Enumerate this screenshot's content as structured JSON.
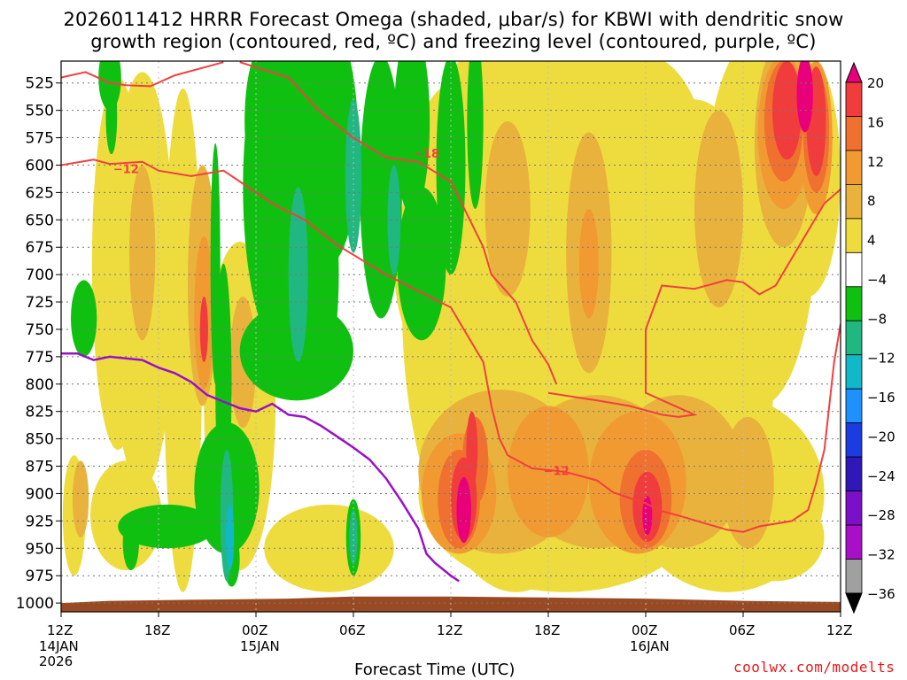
{
  "title": {
    "line1": "2026011412 HRRR Forecast Omega (shaded, μbar/s) for KBWI with dendritic snow",
    "line2": "growth region (contoured, red, ºC) and freezing level (contoured, purple, ºC)"
  },
  "credit": "coolwx.com/modelts",
  "chart_data": {
    "type": "heatmap",
    "xlabel": "Forecast Time (UTC)",
    "ylabel": "",
    "x_ticks": [
      "12Z",
      "18Z",
      "00Z",
      "06Z",
      "12Z",
      "18Z",
      "00Z",
      "06Z",
      "12Z"
    ],
    "x_date_labels": [
      {
        "index": 0,
        "lines": [
          "14JAN",
          "2026"
        ]
      },
      {
        "index": 2,
        "lines": [
          "15JAN"
        ]
      },
      {
        "index": 6,
        "lines": [
          "16JAN"
        ]
      }
    ],
    "x_range_hours": [
      0,
      48
    ],
    "y_ticks": [
      525,
      550,
      575,
      600,
      625,
      650,
      675,
      700,
      725,
      750,
      775,
      800,
      825,
      850,
      875,
      900,
      925,
      950,
      975,
      1000
    ],
    "y_range_mb": [
      505,
      1008
    ],
    "grid": true,
    "colorbar": {
      "labels": [
        "20",
        "16",
        "12",
        "8",
        "4",
        "−4",
        "−8",
        "−12",
        "−16",
        "−20",
        "−24",
        "−28",
        "−32",
        "−36"
      ],
      "colors": [
        "#e8007a",
        "#f03c3c",
        "#f07030",
        "#f29a32",
        "#e9b23c",
        "#eedc3f",
        "#ffffff",
        "#10c010",
        "#20b880",
        "#10b8c8",
        "#1e90ff",
        "#1a3ce0",
        "#3018b8",
        "#7a10c8",
        "#a810c8",
        "#a0a0a0",
        "#000000"
      ]
    },
    "contours": {
      "red_label_12": "−12",
      "red_label_18": "−18",
      "dgz_top_lines": [
        {
          "name": "−12 line upper",
          "points": [
            [
              0,
              520
            ],
            [
              1.5,
              515
            ],
            [
              3,
              525
            ],
            [
              4,
              527
            ],
            [
              5.5,
              528
            ],
            [
              7,
              518
            ],
            [
              9,
              510
            ],
            [
              10,
              506
            ]
          ]
        },
        {
          "name": "−18 line",
          "points": [
            [
              11,
              506
            ],
            [
              14,
              520
            ],
            [
              16,
              552
            ],
            [
              18,
              575
            ],
            [
              20,
              593
            ],
            [
              22,
              597
            ],
            [
              24,
              615
            ],
            [
              25,
              645
            ],
            [
              26,
              675
            ],
            [
              26.5,
              700
            ],
            [
              28,
              725
            ],
            [
              29,
              760
            ],
            [
              30,
              782
            ],
            [
              30.5,
              800
            ]
          ]
        }
      ],
      "dgz_left_lines": [
        {
          "name": "−12 left",
          "points": [
            [
              0,
              600
            ],
            [
              2,
              595
            ],
            [
              3,
              599
            ],
            [
              5,
              597
            ],
            [
              6,
              605
            ],
            [
              8,
              610
            ],
            [
              10,
              605
            ],
            [
              11,
              615
            ],
            [
              13,
              635
            ],
            [
              15,
              650
            ],
            [
              17,
              673
            ],
            [
              20,
              700
            ],
            [
              24,
              730
            ],
            [
              26,
              780
            ],
            [
              26.5,
              820
            ],
            [
              27,
              850
            ],
            [
              27.5,
              865
            ],
            [
              29,
              877
            ],
            [
              31,
              880
            ],
            [
              33,
              888
            ],
            [
              34,
              899
            ],
            [
              36,
              909
            ],
            [
              37,
              916
            ],
            [
              38,
              920
            ],
            [
              41,
              933
            ],
            [
              42,
              935
            ],
            [
              43,
              930
            ],
            [
              45,
              925
            ],
            [
              46,
              915
            ],
            [
              46.5,
              890
            ],
            [
              47,
              860
            ],
            [
              47.3,
              820
            ],
            [
              47.6,
              780
            ],
            [
              48,
              745
            ]
          ]
        },
        {
          "name": "−12 right",
          "points": [
            [
              30,
              808
            ],
            [
              33,
              815
            ],
            [
              35,
              820
            ],
            [
              37,
              828
            ],
            [
              38,
              830
            ],
            [
              39,
              828
            ],
            [
              36,
              808
            ],
            [
              36,
              750
            ],
            [
              37,
              710
            ],
            [
              39,
              713
            ],
            [
              41,
              705
            ],
            [
              42,
              707
            ],
            [
              43,
              718
            ],
            [
              44,
              710
            ],
            [
              46,
              660
            ],
            [
              47,
              635
            ],
            [
              48,
              622
            ]
          ]
        }
      ],
      "freezing_level": {
        "label": "",
        "points": [
          [
            0,
            772
          ],
          [
            1,
            772
          ],
          [
            2,
            778
          ],
          [
            3,
            775
          ],
          [
            5,
            778
          ],
          [
            6,
            785
          ],
          [
            7,
            790
          ],
          [
            8,
            798
          ],
          [
            9,
            810
          ],
          [
            10,
            816
          ],
          [
            11,
            822
          ],
          [
            12,
            825
          ],
          [
            13,
            818
          ],
          [
            14,
            828
          ],
          [
            15,
            830
          ],
          [
            16,
            838
          ],
          [
            17,
            848
          ],
          [
            18,
            858
          ],
          [
            19,
            869
          ],
          [
            20,
            886
          ],
          [
            21,
            908
          ],
          [
            22,
            932
          ],
          [
            22.5,
            955
          ],
          [
            23,
            963
          ],
          [
            24,
            975
          ],
          [
            24.5,
            980
          ]
        ]
      }
    },
    "omega_blobs_note": "shaded omega field: positive (rising, yellow→orange→red→pink) and negative (green→cyan) regions",
    "terrain": {
      "color": "#9a4a22"
    }
  }
}
